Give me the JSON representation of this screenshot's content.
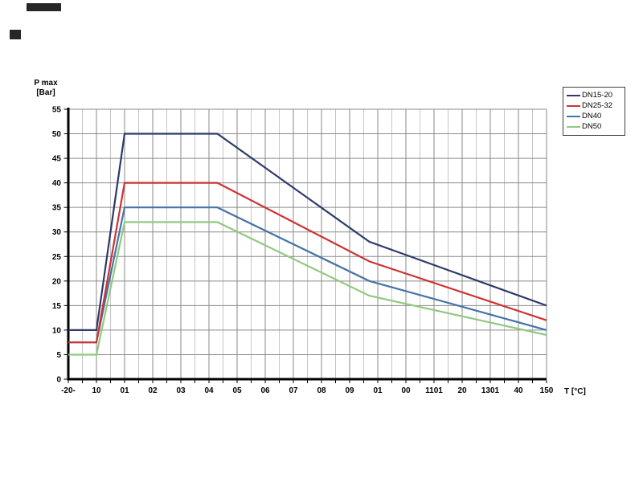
{
  "chart_data": {
    "type": "line",
    "title": "",
    "ylabel_line1": "P max",
    "ylabel_line2": "[Bar]",
    "xlabel": "T [°C]",
    "x_axis": {
      "min": -20,
      "max": 150,
      "major_step": 10,
      "minor_step": 5,
      "tick_labels": [
        "-20-",
        "10",
        "01",
        "02",
        "03",
        "04",
        "05",
        "06",
        "07",
        "08",
        "09",
        "01",
        "00",
        "1101",
        "20",
        "1301",
        "40",
        "150"
      ]
    },
    "y_axis": {
      "min": 0,
      "max": 55,
      "major_step": 5,
      "tick_labels": [
        "0",
        "5",
        "10",
        "15",
        "20",
        "25",
        "30",
        "35",
        "40",
        "45",
        "50",
        "55"
      ]
    },
    "grid": {
      "major_color": "#8a8a8a",
      "minor_color": "#c6c6c6",
      "axis_color": "#000000"
    },
    "legend_position": "top-right",
    "series": [
      {
        "name": "DN15-20",
        "color": "#2d3a69",
        "points": [
          [
            -20,
            10
          ],
          [
            -10,
            10
          ],
          [
            0,
            50
          ],
          [
            33,
            50
          ],
          [
            87,
            28
          ],
          [
            150,
            15
          ]
        ]
      },
      {
        "name": "DN25-32",
        "color": "#cc3333",
        "points": [
          [
            -20,
            7.5
          ],
          [
            -10,
            7.5
          ],
          [
            0,
            40
          ],
          [
            33,
            40
          ],
          [
            87,
            24
          ],
          [
            150,
            12
          ]
        ]
      },
      {
        "name": "DN40",
        "color": "#4473a6",
        "points": [
          [
            -20,
            7.5
          ],
          [
            -10,
            7.5
          ],
          [
            0,
            35
          ],
          [
            33,
            35
          ],
          [
            87,
            20
          ],
          [
            150,
            10
          ]
        ]
      },
      {
        "name": "DN50",
        "color": "#8fc980",
        "points": [
          [
            -20,
            5
          ],
          [
            -10,
            5
          ],
          [
            0,
            32
          ],
          [
            33,
            32
          ],
          [
            87,
            17
          ],
          [
            150,
            9
          ]
        ]
      }
    ]
  }
}
